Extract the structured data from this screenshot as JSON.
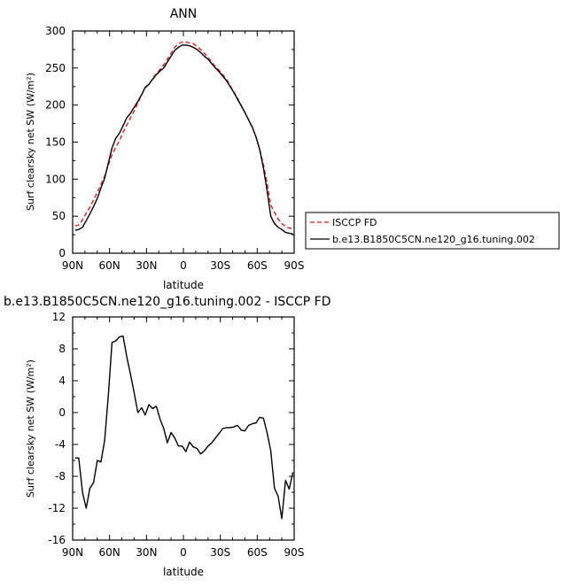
{
  "chart_data": [
    {
      "type": "line",
      "title": "ANN",
      "xlabel": "latitude",
      "ylabel": "Surf clearsky net SW (W/m²)",
      "xlim": [
        90,
        -90
      ],
      "ylim": [
        0,
        300
      ],
      "x_ticks": [
        "90N",
        "60N",
        "30N",
        "0",
        "30S",
        "60S",
        "90S"
      ],
      "y_ticks": [
        "0",
        "50",
        "100",
        "150",
        "200",
        "250",
        "300"
      ],
      "legend_position": "right",
      "series": [
        {
          "name": "ISCCP FD",
          "color": "#e41a1c",
          "dash": "dashed",
          "x": [
            88,
            85,
            82,
            79,
            76,
            73,
            70,
            67,
            64,
            61,
            58,
            55,
            52,
            49,
            46,
            43,
            40,
            37,
            34,
            31,
            28,
            25,
            22,
            19,
            16,
            13,
            10,
            7,
            4,
            1,
            -2,
            -5,
            -8,
            -11,
            -14,
            -17,
            -20,
            -23,
            -26,
            -29,
            -32,
            -35,
            -38,
            -41,
            -44,
            -47,
            -50,
            -53,
            -56,
            -59,
            -62,
            -65,
            -68,
            -71,
            -74,
            -77,
            -80,
            -83,
            -86,
            -89
          ],
          "values": [
            37,
            38,
            45,
            54,
            62,
            72,
            82,
            93,
            104,
            119,
            133,
            143,
            152,
            163,
            173,
            183,
            192,
            203,
            214,
            223,
            228,
            236,
            242,
            248,
            254,
            262,
            270,
            278,
            283,
            285,
            285,
            284,
            283,
            279,
            275,
            270,
            264,
            258,
            252,
            247,
            241,
            235,
            226,
            218,
            209,
            199,
            190,
            180,
            170,
            157,
            140,
            120,
            95,
            65,
            55,
            46,
            40,
            36,
            34,
            33
          ]
        },
        {
          "name": "b.e13.B1850C5CN.ne120_g16.tuning.002",
          "color": "#000000",
          "dash": "solid",
          "x": [
            88,
            85,
            82,
            79,
            76,
            73,
            70,
            67,
            64,
            61,
            58,
            55,
            52,
            49,
            46,
            43,
            40,
            37,
            34,
            31,
            28,
            25,
            22,
            19,
            16,
            13,
            10,
            7,
            4,
            1,
            -2,
            -5,
            -8,
            -11,
            -14,
            -17,
            -20,
            -23,
            -26,
            -29,
            -32,
            -35,
            -38,
            -41,
            -44,
            -47,
            -50,
            -53,
            -56,
            -59,
            -62,
            -65,
            -68,
            -71,
            -74,
            -77,
            -80,
            -83,
            -86,
            -89
          ],
          "values": [
            31,
            32,
            35,
            44,
            53,
            63,
            74,
            88,
            101,
            122,
            142,
            155,
            162,
            172,
            183,
            189,
            197,
            205,
            214,
            224,
            228,
            235,
            241,
            246,
            250,
            258,
            266,
            274,
            278,
            281,
            281,
            280,
            278,
            275,
            271,
            266,
            262,
            256,
            250,
            245,
            239,
            233,
            225,
            217,
            208,
            199,
            190,
            180,
            170,
            157,
            140,
            115,
            85,
            50,
            40,
            35,
            32,
            28,
            27,
            26
          ]
        }
      ]
    },
    {
      "type": "line",
      "title": "b.e13.B1850C5CN.ne120_g16.tuning.002 - ISCCP FD",
      "xlabel": "latitude",
      "ylabel": "Surf clearsky net SW (W/m²)",
      "xlim": [
        90,
        -90
      ],
      "ylim": [
        -16,
        12
      ],
      "x_ticks": [
        "90N",
        "60N",
        "30N",
        "0",
        "30S",
        "60S",
        "90S"
      ],
      "y_ticks": [
        "-16",
        "-12",
        "-8",
        "-4",
        "0",
        "4",
        "8",
        "12"
      ],
      "series": [
        {
          "color": "#000000",
          "dash": "solid",
          "x": [
            88,
            85,
            82,
            79,
            76,
            73,
            70,
            67,
            64,
            61,
            58,
            55,
            52,
            49,
            46,
            43,
            40,
            37,
            34,
            31,
            28,
            25,
            22,
            19,
            16,
            13,
            10,
            7,
            4,
            1,
            -2,
            -5,
            -8,
            -11,
            -14,
            -17,
            -20,
            -23,
            -26,
            -29,
            -32,
            -35,
            -38,
            -41,
            -44,
            -47,
            -50,
            -53,
            -56,
            -59,
            -62,
            -65,
            -68,
            -71,
            -74,
            -77,
            -80,
            -83,
            -86,
            -89
          ],
          "values": [
            -5.7,
            -5.7,
            -10,
            -12,
            -9.5,
            -8.8,
            -6,
            -6.2,
            -3.5,
            2.2,
            8.8,
            9.0,
            9.5,
            9.6,
            7,
            4.8,
            2.5,
            0,
            0.6,
            -0.3,
            1.0,
            0.5,
            0.8,
            -0.8,
            -2,
            -3.8,
            -2.5,
            -3.2,
            -4.2,
            -4.2,
            -4.9,
            -3.7,
            -4.3,
            -4.5,
            -5.2,
            -4.8,
            -4.2,
            -3.8,
            -3.2,
            -2.6,
            -2.0,
            -1.9,
            -1.9,
            -1.8,
            -1.6,
            -2.2,
            -2.3,
            -1.6,
            -1.4,
            -1.3,
            -0.6,
            -0.7,
            -2.5,
            -4.8,
            -9.5,
            -10.5,
            -13.3,
            -8.5,
            -9.6,
            -7.5
          ]
        }
      ]
    }
  ]
}
